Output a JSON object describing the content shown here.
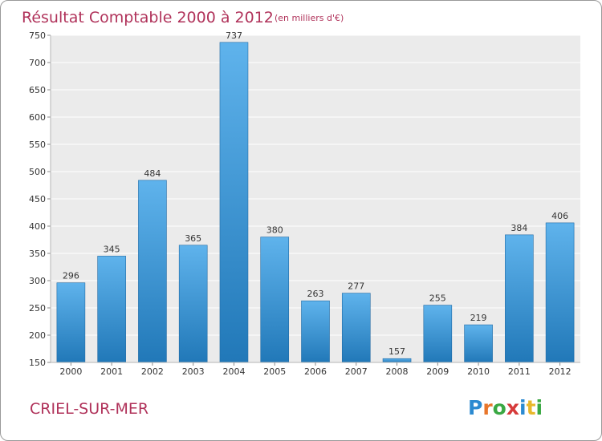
{
  "page": {
    "title_main": "Résultat Comptable 2000 à 2012",
    "title_unit": "(en milliers d'€)",
    "location": "CRIEL-SUR-MER",
    "logo": "Proxiti"
  },
  "colors": {
    "title": "#b0325a",
    "bar_top": "#5fb3ec",
    "bar_bottom": "#2178b8",
    "bar_edge": "#1f6aa5",
    "plot_bg": "#ebebeb",
    "grid": "#ffffff",
    "text": "#333333"
  },
  "chart_data": {
    "type": "bar",
    "title": "Résultat Comptable 2000 à 2012",
    "subtitle": "(en milliers d'€)",
    "xlabel": "",
    "ylabel": "",
    "categories": [
      "2000",
      "2001",
      "2002",
      "2003",
      "2004",
      "2005",
      "2006",
      "2007",
      "2008",
      "2009",
      "2010",
      "2011",
      "2012"
    ],
    "values": [
      296,
      345,
      484,
      365,
      737,
      380,
      263,
      277,
      157,
      255,
      219,
      384,
      406
    ],
    "ylim": [
      150,
      750
    ],
    "yticks": [
      150,
      200,
      250,
      300,
      350,
      400,
      450,
      500,
      550,
      600,
      650,
      700,
      750
    ],
    "grid": true,
    "data_labels": true
  }
}
